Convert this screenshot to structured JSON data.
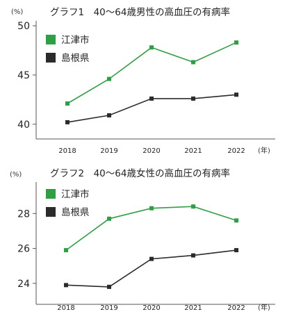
{
  "colors": {
    "green": "#2ea043",
    "black": "#2b2b2b",
    "axis": "#555555"
  },
  "chart_data": [
    {
      "type": "line",
      "title": "グラフ1　40～64歳男性の高血圧の有病率",
      "y_unit": "(%)",
      "x_unit": "(年)",
      "categories": [
        "2018",
        "2019",
        "2020",
        "2021",
        "2022"
      ],
      "ylim": [
        38.5,
        50.5
      ],
      "yticks": [
        "40",
        "45",
        "50"
      ],
      "grid": false,
      "legend_position": "top-left",
      "series": [
        {
          "name": "江津市",
          "color": "#2ea043",
          "values": [
            42.1,
            44.6,
            47.8,
            46.3,
            48.3
          ]
        },
        {
          "name": "島根県",
          "color": "#2b2b2b",
          "values": [
            40.2,
            40.9,
            42.6,
            42.6,
            43.0
          ]
        }
      ]
    },
    {
      "type": "line",
      "title": "グラフ2　40～64歳女性の高血圧の有病率",
      "y_unit": "(%)",
      "x_unit": "(年)",
      "categories": [
        "2018",
        "2019",
        "2020",
        "2021",
        "2022"
      ],
      "ylim": [
        22.8,
        29.8
      ],
      "yticks": [
        "24",
        "26",
        "28"
      ],
      "grid": false,
      "legend_position": "top-left",
      "series": [
        {
          "name": "江津市",
          "color": "#2ea043",
          "values": [
            25.9,
            27.7,
            28.3,
            28.4,
            27.6
          ]
        },
        {
          "name": "島根県",
          "color": "#2b2b2b",
          "values": [
            23.9,
            23.8,
            25.4,
            25.6,
            25.9
          ]
        }
      ]
    }
  ]
}
